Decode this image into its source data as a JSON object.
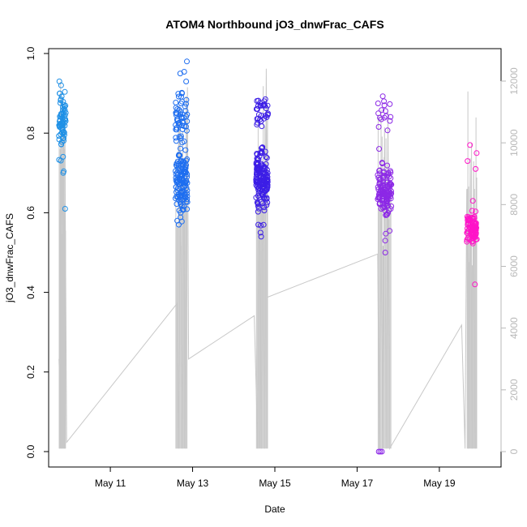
{
  "chart_data": {
    "type": "scatter",
    "title": "ATOM4 Northbound jO3_dnwFrac_CAFS",
    "xlabel": "Date",
    "ylabel": "jO3_dnwFrac_CAFS",
    "x_ticks": [
      "May 11",
      "May 13",
      "May 15",
      "May 17",
      "May 19"
    ],
    "y_ticks": [
      "0.0",
      "0.2",
      "0.4",
      "0.6",
      "0.8",
      "1.0"
    ],
    "y2_ticks": [
      "0",
      "2000",
      "4000",
      "6000",
      "8000",
      "10000",
      "12000"
    ],
    "xlim": [
      "2018-05-09 12:00",
      "2018-05-20 12:00"
    ],
    "ylim": [
      0,
      1
    ],
    "y2lim": [
      0,
      12000
    ],
    "grid": false,
    "legend": "none",
    "colors": {
      "flight1": "#1e90e6",
      "flight2": "#1e6ef0",
      "flight3": "#3c1ee6",
      "flight4": "#8c28e6",
      "flight5": "#ff14c8",
      "altitude_line": "#c8c8c8"
    },
    "series": [
      {
        "flight": 1,
        "color": "flight1",
        "x_range": [
          "2018-05-09 18:00",
          "2018-05-09 22:00"
        ],
        "y_center": 0.83,
        "y_spread": 0.08,
        "y_outliers": [
          0.93,
          0.92,
          0.7,
          0.61
        ],
        "n": 70
      },
      {
        "flight": 2,
        "color": "flight2",
        "x_range": [
          "2018-05-12 14:00",
          "2018-05-12 21:00"
        ],
        "clusters": [
          {
            "y_center": 0.68,
            "y_spread": 0.07,
            "n": 130
          },
          {
            "y_center": 0.84,
            "y_spread": 0.05,
            "n": 50
          }
        ],
        "y_outliers": [
          0.98,
          0.95,
          0.9,
          0.57,
          0.58,
          0.6
        ],
        "n": 186
      },
      {
        "flight": 3,
        "color": "flight3",
        "x_range": [
          "2018-05-14 13:00",
          "2018-05-14 20:00"
        ],
        "clusters": [
          {
            "y_center": 0.69,
            "y_spread": 0.06,
            "n": 150
          },
          {
            "y_center": 0.85,
            "y_spread": 0.03,
            "n": 30
          }
        ],
        "y_outliers": [
          0.88,
          0.55,
          0.54,
          0.57
        ],
        "n": 184
      },
      {
        "flight": 4,
        "color": "flight4",
        "x_range": [
          "2018-05-17 12:00",
          "2018-05-17 20:00"
        ],
        "clusters": [
          {
            "y_center": 0.65,
            "y_spread": 0.06,
            "n": 120
          },
          {
            "y_center": 0.85,
            "y_spread": 0.03,
            "n": 15
          }
        ],
        "y_outliers": [
          0.88,
          0.5,
          0.53,
          0.0,
          0.0,
          0.0
        ],
        "n": 141
      },
      {
        "flight": 5,
        "color": "flight5",
        "x_range": [
          "2018-05-19 16:00",
          "2018-05-19 22:00"
        ],
        "clusters": [
          {
            "y_center": 0.56,
            "y_spread": 0.03,
            "n": 90
          }
        ],
        "y_outliers": [
          0.77,
          0.75,
          0.73,
          0.71,
          0.63,
          0.42
        ],
        "n": 96
      }
    ],
    "altitude": {
      "axis": "right",
      "path": [
        [
          "2018-05-09 18:00",
          3000
        ],
        [
          "2018-05-09 19:00",
          1200
        ],
        [
          "2018-05-09 20:00",
          9500
        ],
        [
          "2018-05-09 21:30",
          9800
        ],
        [
          "2018-05-09 22:30",
          300
        ],
        [
          "2018-05-12 15:00",
          4800
        ],
        [
          "2018-05-12 16:00",
          100
        ],
        [
          "2018-05-12 17:00",
          8500
        ],
        [
          "2018-05-12 18:00",
          100
        ],
        [
          "2018-05-12 19:00",
          9000
        ],
        [
          "2018-05-12 20:00",
          100
        ],
        [
          "2018-05-12 21:00",
          11800
        ],
        [
          "2018-05-12 21:40",
          3000
        ],
        [
          "2018-05-14 12:00",
          4400
        ],
        [
          "2018-05-14 14:00",
          100
        ],
        [
          "2018-05-14 15:00",
          9000
        ],
        [
          "2018-05-14 16:00",
          100
        ],
        [
          "2018-05-14 17:00",
          9500
        ],
        [
          "2018-05-14 18:00",
          100
        ],
        [
          "2018-05-14 19:00",
          12400
        ],
        [
          "2018-05-14 19:40",
          5000
        ],
        [
          "2018-05-17 12:00",
          6400
        ],
        [
          "2018-05-17 13:00",
          100
        ],
        [
          "2018-05-17 14:00",
          9500
        ],
        [
          "2018-05-17 15:00",
          100
        ],
        [
          "2018-05-17 16:00",
          10500
        ],
        [
          "2018-05-17 17:00",
          100
        ],
        [
          "2018-05-17 18:00",
          11000
        ],
        [
          "2018-05-17 19:00",
          100
        ],
        [
          "2018-05-19 13:00",
          4100
        ],
        [
          "2018-05-19 15:00",
          100
        ],
        [
          "2018-05-19 16:00",
          8500
        ],
        [
          "2018-05-19 17:00",
          100
        ],
        [
          "2018-05-19 18:00",
          9500
        ],
        [
          "2018-05-19 19:00",
          100
        ],
        [
          "2018-05-19 20:00",
          9400
        ],
        [
          "2018-05-19 21:00",
          100
        ]
      ]
    }
  }
}
